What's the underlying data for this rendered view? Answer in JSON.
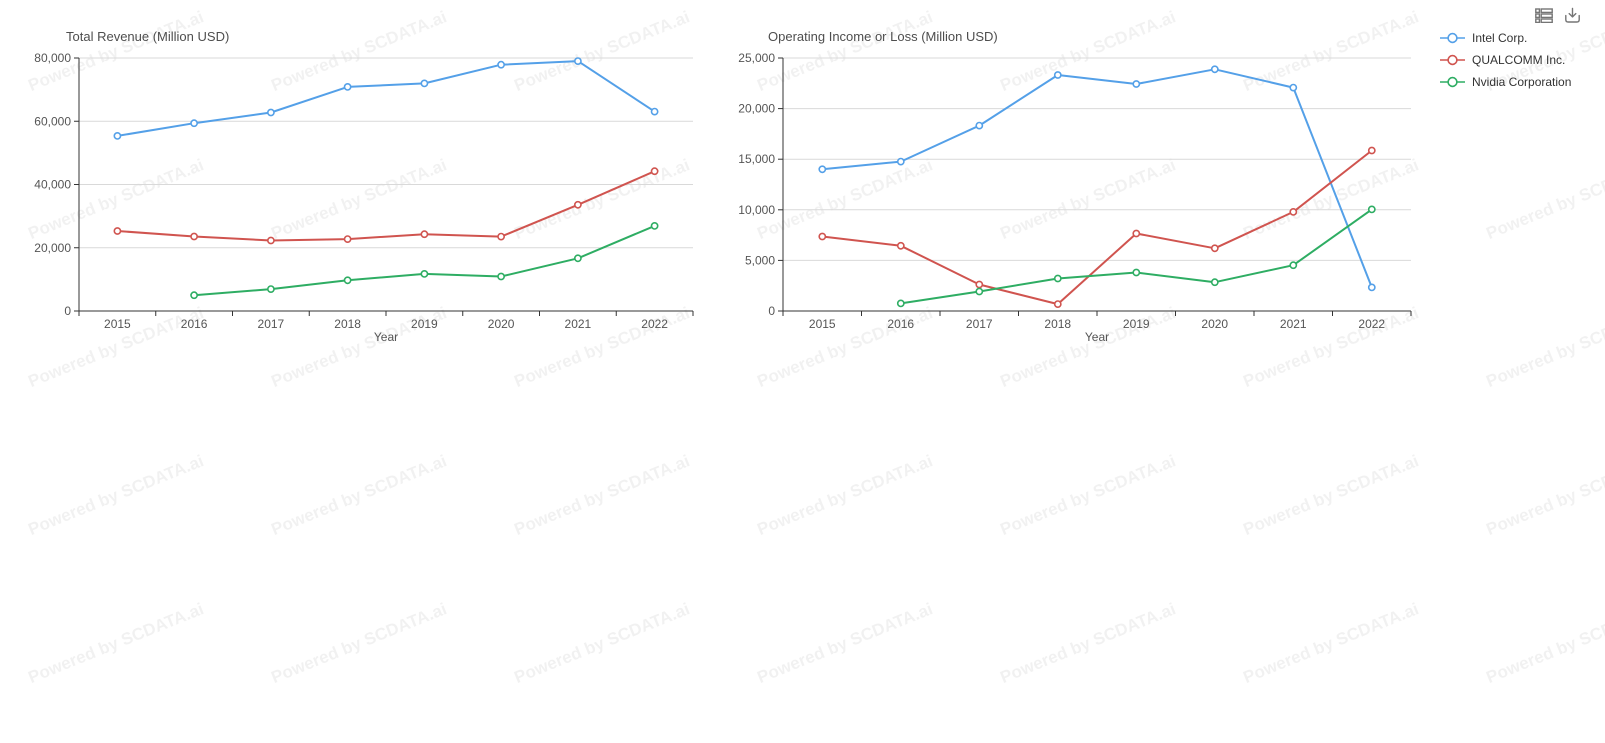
{
  "watermark": {
    "text": "Powered by SCDATA.ai"
  },
  "toolbox": {
    "icons": [
      {
        "name": "data-view-icon"
      },
      {
        "name": "download-icon"
      }
    ],
    "color": "#757575"
  },
  "legend": {
    "items": [
      {
        "label": "Intel Corp.",
        "color": "#54a0e8"
      },
      {
        "label": "QUALCOMM Inc.",
        "color": "#d0544f"
      },
      {
        "label": "Nvidia Corporation",
        "color": "#2ead63"
      }
    ]
  },
  "chart_data": [
    {
      "type": "line",
      "title": "Total Revenue (Million USD)",
      "xlabel": "Year",
      "ylabel": "",
      "categories": [
        "2015",
        "2016",
        "2017",
        "2018",
        "2019",
        "2020",
        "2021",
        "2022"
      ],
      "series": [
        {
          "name": "Intel Corp.",
          "color": "#54a0e8",
          "values": [
            55355,
            59387,
            62761,
            70848,
            71965,
            77867,
            79024,
            63054
          ]
        },
        {
          "name": "QUALCOMM Inc.",
          "color": "#d0544f",
          "values": [
            25281,
            23554,
            22291,
            22732,
            24273,
            23531,
            33566,
            44200
          ]
        },
        {
          "name": "Nvidia Corporation",
          "color": "#2ead63",
          "values": [
            null,
            5010,
            6910,
            9714,
            11716,
            10918,
            16675,
            26914
          ]
        }
      ],
      "ylim": [
        0,
        80000
      ],
      "yticks": [
        0,
        20000,
        40000,
        60000,
        80000
      ],
      "grid": true,
      "legend_position": "top-right"
    },
    {
      "type": "line",
      "title": "Operating Income or Loss (Million USD)",
      "xlabel": "Year",
      "ylabel": "",
      "categories": [
        "2015",
        "2016",
        "2017",
        "2018",
        "2019",
        "2020",
        "2021",
        "2022"
      ],
      "series": [
        {
          "name": "Intel Corp.",
          "color": "#54a0e8",
          "values": [
            14002,
            14760,
            18320,
            23320,
            22430,
            23880,
            22080,
            2334
          ]
        },
        {
          "name": "QUALCOMM Inc.",
          "color": "#d0544f",
          "values": [
            7360,
            6440,
            2614,
            680,
            7660,
            6200,
            9790,
            15860
          ]
        },
        {
          "name": "Nvidia Corporation",
          "color": "#2ead63",
          "values": [
            null,
            750,
            1930,
            3210,
            3800,
            2850,
            4530,
            10040
          ]
        }
      ],
      "ylim": [
        0,
        25000
      ],
      "yticks": [
        0,
        5000,
        10000,
        15000,
        20000,
        25000
      ],
      "grid": true,
      "legend_position": "top-right"
    }
  ],
  "style": {
    "axis_line_color": "#333333",
    "grid_line_color": "#d9d9d9",
    "tick_label_color": "#555555",
    "title_color": "#4e4e4e"
  }
}
